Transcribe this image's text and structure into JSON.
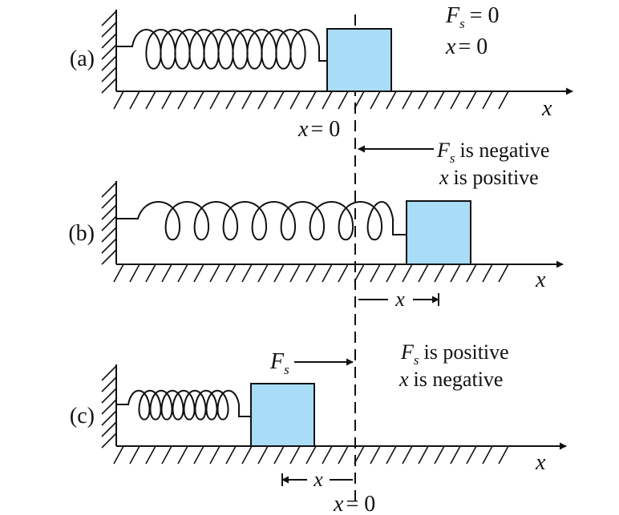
{
  "panels": [
    {
      "label": "(a)",
      "force": {
        "symbol": "F",
        "subscript": "s",
        "relation": "= 0"
      },
      "position": {
        "symbol": "x",
        "relation": "= 0"
      }
    },
    {
      "label": "(b)",
      "force": {
        "symbol": "F",
        "subscript": "s",
        "description": "is negative"
      },
      "position": {
        "symbol": "x",
        "description": "is positive"
      },
      "displacement": {
        "symbol": "x"
      }
    },
    {
      "label": "(c)",
      "force": {
        "symbol": "F",
        "subscript": "s",
        "description": "is positive"
      },
      "position": {
        "symbol": "x",
        "description": "is negative"
      },
      "arrow_force": {
        "symbol": "F",
        "subscript": "s"
      },
      "displacement": {
        "symbol": "x"
      }
    }
  ],
  "axis": {
    "symbol": "x"
  },
  "equilibrium": {
    "symbol": "x",
    "relation": "= 0"
  },
  "colors": {
    "block_fill": "#a8dcf7",
    "ink": "#111111",
    "background": "#ffffff"
  }
}
